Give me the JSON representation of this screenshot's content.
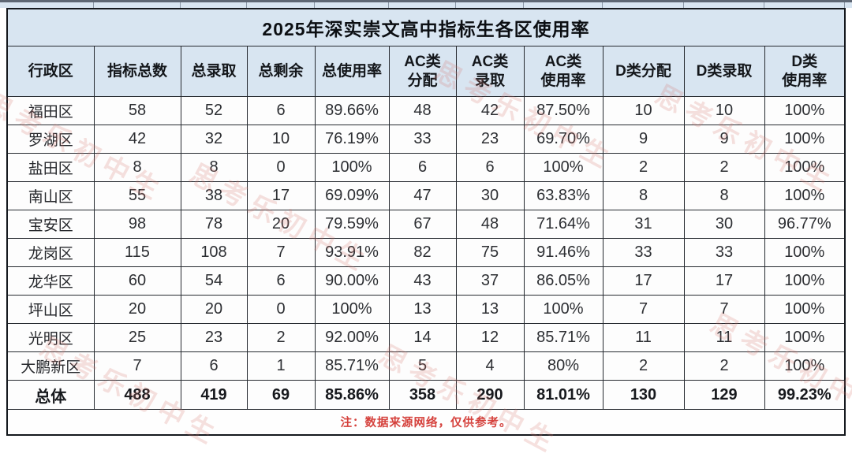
{
  "chart_data": {
    "type": "table",
    "title": "2025年深实崇文高中指标生各区使用率",
    "columns": [
      {
        "label": "行政区",
        "lines": [
          "行政区"
        ]
      },
      {
        "label": "指标总数",
        "lines": [
          "指标总数"
        ]
      },
      {
        "label": "总录取",
        "lines": [
          "总录取"
        ]
      },
      {
        "label": "总剩余",
        "lines": [
          "总剩余"
        ]
      },
      {
        "label": "总使用率",
        "lines": [
          "总使用率"
        ]
      },
      {
        "label": "AC类分配",
        "lines": [
          "AC类",
          "分配"
        ]
      },
      {
        "label": "AC类录取",
        "lines": [
          "AC类",
          "录取"
        ]
      },
      {
        "label": "AC类使用率",
        "lines": [
          "AC类",
          "使用率"
        ]
      },
      {
        "label": "D类分配",
        "lines": [
          "D类分配"
        ]
      },
      {
        "label": "D类录取",
        "lines": [
          "D类录取"
        ]
      },
      {
        "label": "D类使用率",
        "lines": [
          "D类",
          "使用率"
        ]
      }
    ],
    "rows": [
      [
        "福田区",
        "58",
        "52",
        "6",
        "89.66%",
        "48",
        "42",
        "87.50%",
        "10",
        "10",
        "100%"
      ],
      [
        "罗湖区",
        "42",
        "32",
        "10",
        "76.19%",
        "33",
        "23",
        "69.70%",
        "9",
        "9",
        "100%"
      ],
      [
        "盐田区",
        "8",
        "8",
        "0",
        "100%",
        "6",
        "6",
        "100%",
        "2",
        "2",
        "100%"
      ],
      [
        "南山区",
        "55",
        "38",
        "17",
        "69.09%",
        "47",
        "30",
        "63.83%",
        "8",
        "8",
        "100%"
      ],
      [
        "宝安区",
        "98",
        "78",
        "20",
        "79.59%",
        "67",
        "48",
        "71.64%",
        "31",
        "30",
        "96.77%"
      ],
      [
        "龙岗区",
        "115",
        "108",
        "7",
        "93.91%",
        "82",
        "75",
        "91.46%",
        "33",
        "33",
        "100%"
      ],
      [
        "龙华区",
        "60",
        "54",
        "6",
        "90.00%",
        "43",
        "37",
        "86.05%",
        "17",
        "17",
        "100%"
      ],
      [
        "坪山区",
        "20",
        "20",
        "0",
        "100%",
        "13",
        "13",
        "100%",
        "7",
        "7",
        "100%"
      ],
      [
        "光明区",
        "25",
        "23",
        "2",
        "92.00%",
        "14",
        "12",
        "85.71%",
        "11",
        "11",
        "100%"
      ],
      [
        "大鹏新区",
        "7",
        "6",
        "1",
        "85.71%",
        "5",
        "4",
        "80%",
        "2",
        "2",
        "100%"
      ]
    ],
    "total_row": [
      "总体",
      "488",
      "419",
      "69",
      "85.86%",
      "358",
      "290",
      "81.01%",
      "130",
      "129",
      "99.23%"
    ],
    "note": "注：数据来源网络，仅供参考。"
  },
  "watermark": {
    "text": "思考乐初中生"
  },
  "colors": {
    "header_bg": "#d8e5f1",
    "border_dark": "#14181d",
    "note_red": "#d5413c",
    "top_band": "#5d6673"
  }
}
